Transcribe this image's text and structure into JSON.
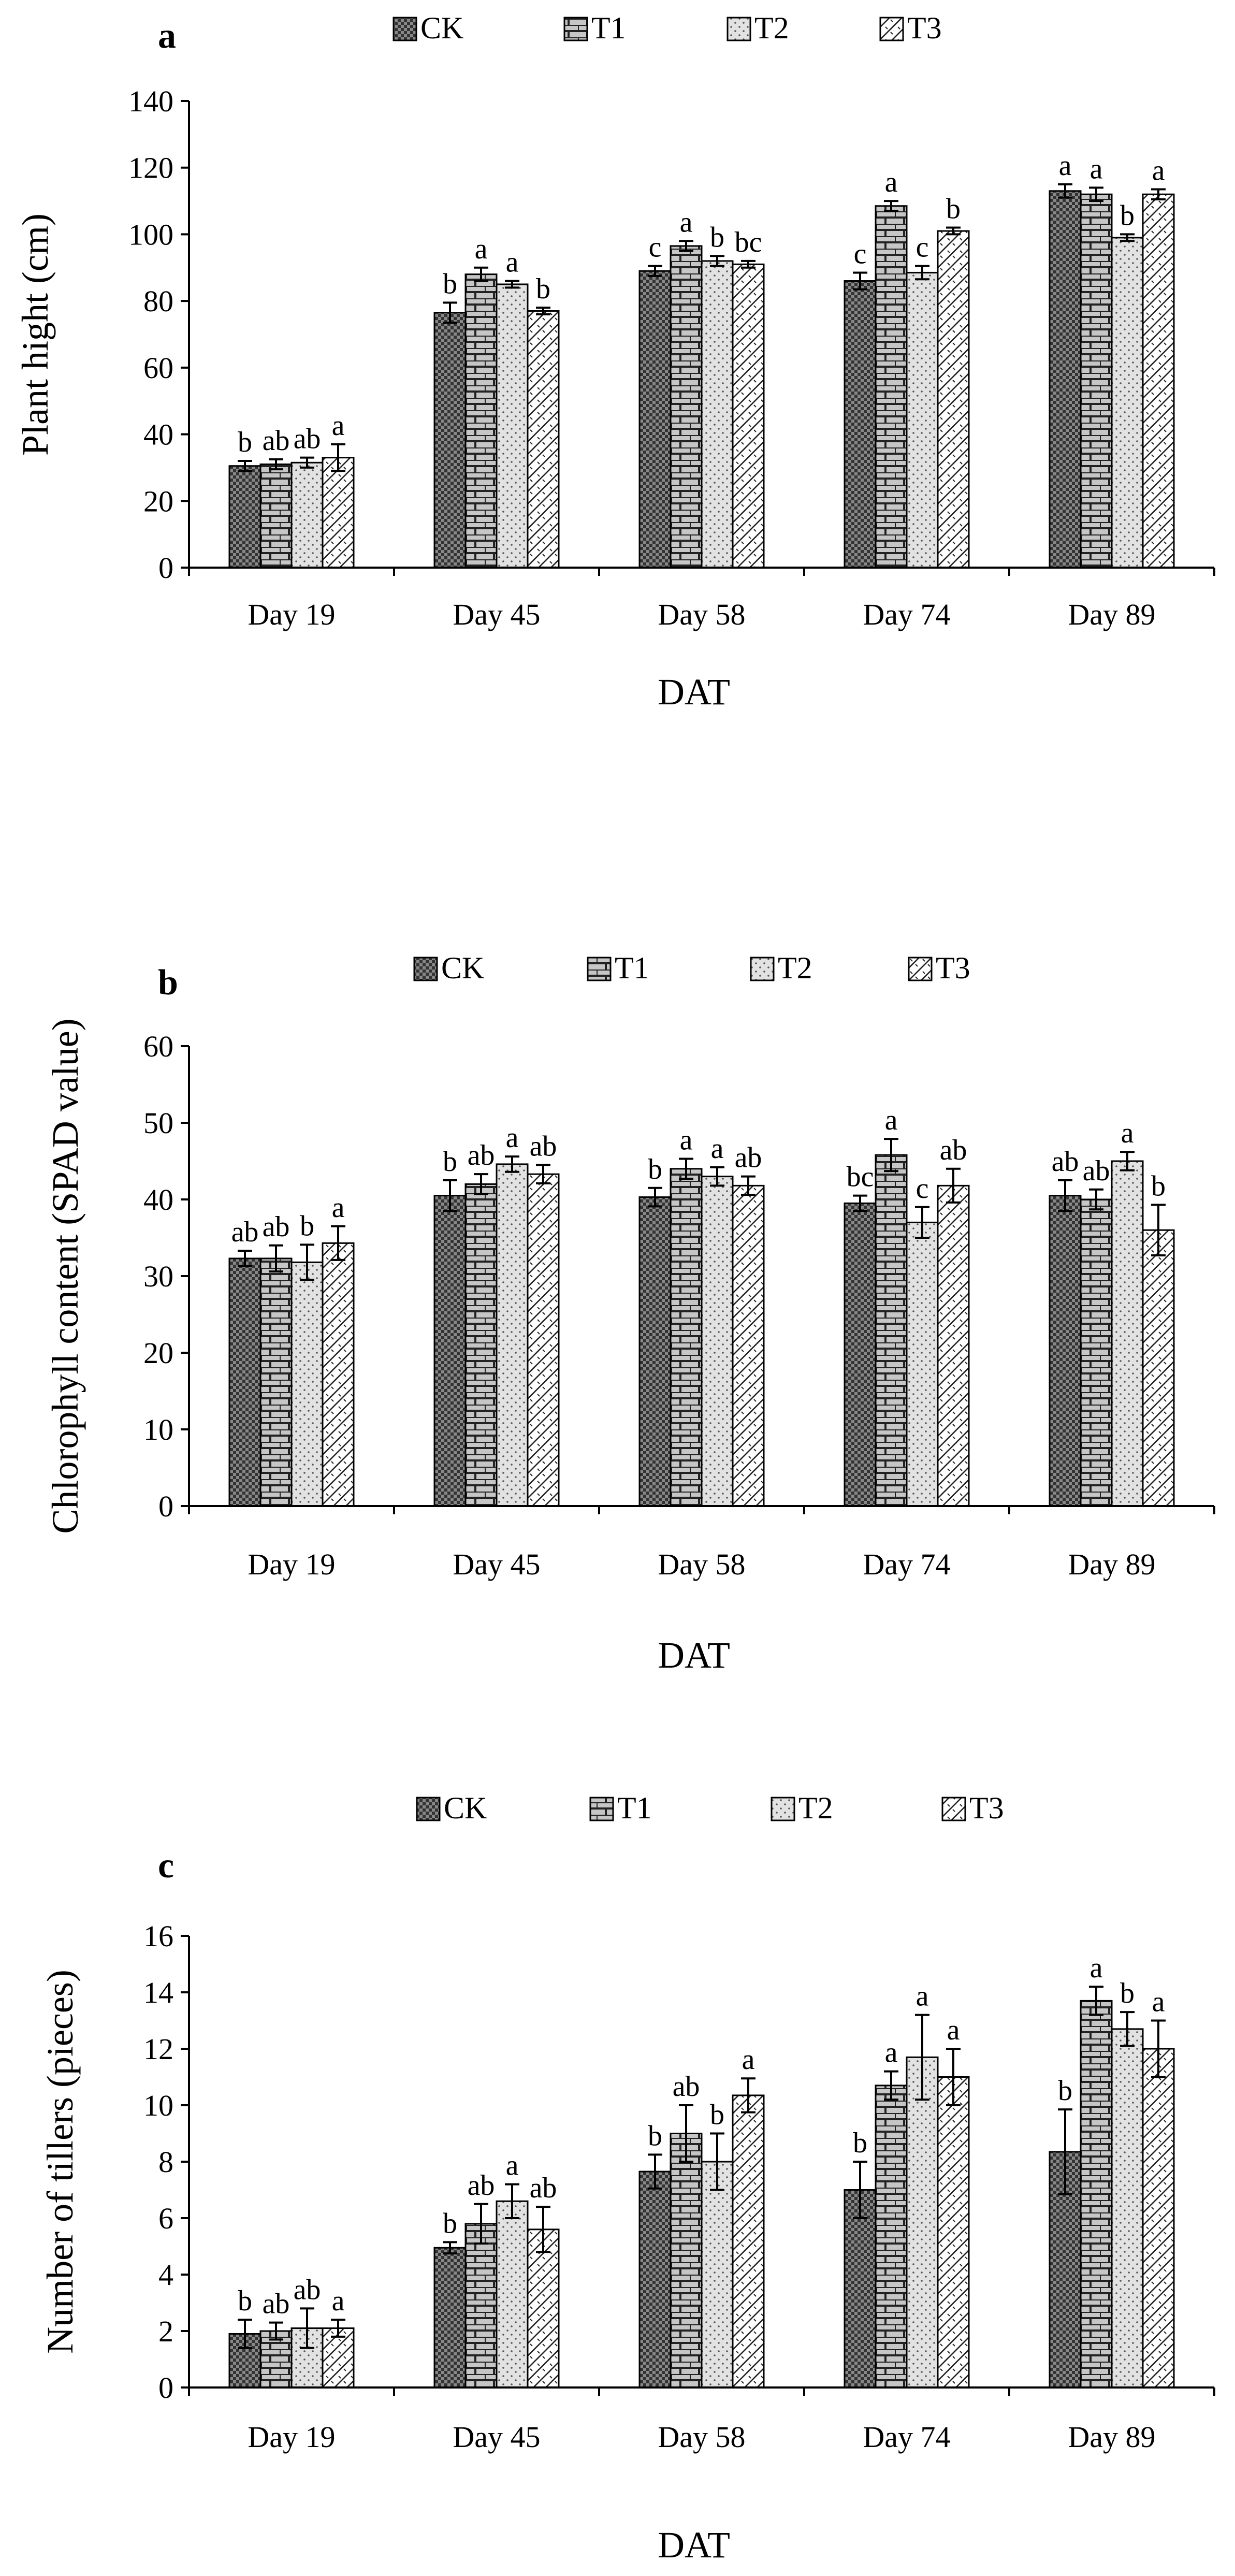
{
  "figure": {
    "treatments": [
      "CK",
      "T1",
      "T2",
      "T3"
    ],
    "legend_labels": [
      "CK",
      "T1",
      "T2",
      "T3"
    ]
  },
  "chart_data": [
    {
      "type": "bar",
      "panel_label": "a",
      "title": "",
      "xlabel": "DAT",
      "ylabel": "Plant hight  (cm)",
      "ylim": [
        0,
        140
      ],
      "yticks": [
        "0",
        "20",
        "40",
        "60",
        "80",
        "100",
        "120",
        "140"
      ],
      "categories": [
        "Day 19",
        "Day 45",
        "Day 58",
        "Day 74",
        "Day 89"
      ],
      "series": [
        {
          "name": "CK",
          "values": [
            30.5,
            76.5,
            89,
            86,
            113
          ],
          "errors": [
            1.5,
            3,
            1.5,
            2.5,
            2
          ],
          "letters": [
            "b",
            "b",
            "c",
            "c",
            "a"
          ]
        },
        {
          "name": "T1",
          "values": [
            31,
            88,
            96.5,
            108.5,
            112
          ],
          "errors": [
            1.5,
            2,
            1.5,
            1.5,
            2
          ],
          "letters": [
            "ab",
            "a",
            "a",
            "a",
            "a"
          ]
        },
        {
          "name": "T2",
          "values": [
            31.5,
            85,
            92,
            88.5,
            99
          ],
          "errors": [
            1.5,
            1,
            1.5,
            2,
            1
          ],
          "letters": [
            "ab",
            "a",
            "b",
            "c",
            "b"
          ]
        },
        {
          "name": "T3",
          "values": [
            33,
            77,
            91,
            101,
            112
          ],
          "errors": [
            4,
            1,
            1,
            1,
            1.5
          ],
          "letters": [
            "a",
            "b",
            "bc",
            "b",
            "a"
          ]
        }
      ],
      "grid": false,
      "legend": "top-center"
    },
    {
      "type": "bar",
      "panel_label": "b",
      "title": "",
      "xlabel": "DAT",
      "ylabel": "Chlorophyll content (SPAD value)",
      "ylim": [
        0,
        60
      ],
      "yticks": [
        "0",
        "10",
        "20",
        "30",
        "40",
        "50",
        "60"
      ],
      "categories": [
        "Day 19",
        "Day 45",
        "Day 58",
        "Day 74",
        "Day 89"
      ],
      "series": [
        {
          "name": "CK",
          "values": [
            32.3,
            40.5,
            40.3,
            39.5,
            40.5
          ],
          "errors": [
            1,
            2,
            1.2,
            1,
            2
          ],
          "letters": [
            "ab",
            "b",
            "b",
            "bc",
            "ab"
          ]
        },
        {
          "name": "T1",
          "values": [
            32.3,
            42,
            44,
            45.8,
            40
          ],
          "errors": [
            1.7,
            1.3,
            1.3,
            2.1,
            1.3
          ],
          "letters": [
            "ab",
            "ab",
            "a",
            "a",
            "ab"
          ]
        },
        {
          "name": "T2",
          "values": [
            31.8,
            44.6,
            43,
            37,
            45
          ],
          "errors": [
            2.3,
            1,
            1.2,
            2,
            1.2
          ],
          "letters": [
            "b",
            "a",
            "a",
            "c",
            "a"
          ]
        },
        {
          "name": "T3",
          "values": [
            34.3,
            43.3,
            41.8,
            41.8,
            36
          ],
          "errors": [
            2.2,
            1.2,
            1.2,
            2.2,
            3.3
          ],
          "letters": [
            "a",
            "ab",
            "ab",
            "ab",
            "b"
          ]
        }
      ],
      "grid": false,
      "legend": "top-center"
    },
    {
      "type": "bar",
      "panel_label": "c",
      "title": "",
      "xlabel": "DAT",
      "ylabel": "Number of tillers (pieces)",
      "ylim": [
        0,
        16
      ],
      "yticks": [
        "0",
        "2",
        "4",
        "6",
        "8",
        "10",
        "12",
        "14",
        "16"
      ],
      "categories": [
        "Day 19",
        "Day 45",
        "Day 58",
        "Day 74",
        "Day 89"
      ],
      "series": [
        {
          "name": "CK",
          "values": [
            1.9,
            4.95,
            7.65,
            7,
            8.35
          ],
          "errors": [
            0.5,
            0.2,
            0.6,
            1,
            1.5
          ],
          "letters": [
            "b",
            "b",
            "b",
            "b",
            "b"
          ]
        },
        {
          "name": "T1",
          "values": [
            2,
            5.8,
            9,
            10.7,
            13.7
          ],
          "errors": [
            0.3,
            0.7,
            1,
            0.5,
            0.5
          ],
          "letters": [
            "ab",
            "ab",
            "ab",
            "a",
            "a"
          ]
        },
        {
          "name": "T2",
          "values": [
            2.1,
            6.6,
            8,
            11.7,
            12.7
          ],
          "errors": [
            0.7,
            0.6,
            1,
            1.5,
            0.6
          ],
          "letters": [
            "ab",
            "a",
            "b",
            "a",
            "b"
          ]
        },
        {
          "name": "T3",
          "values": [
            2.1,
            5.6,
            10.35,
            11,
            12
          ],
          "errors": [
            0.3,
            0.8,
            0.6,
            1,
            1
          ],
          "letters": [
            "a",
            "ab",
            "a",
            "a",
            "a"
          ]
        }
      ],
      "grid": false,
      "legend": "top-center"
    }
  ]
}
